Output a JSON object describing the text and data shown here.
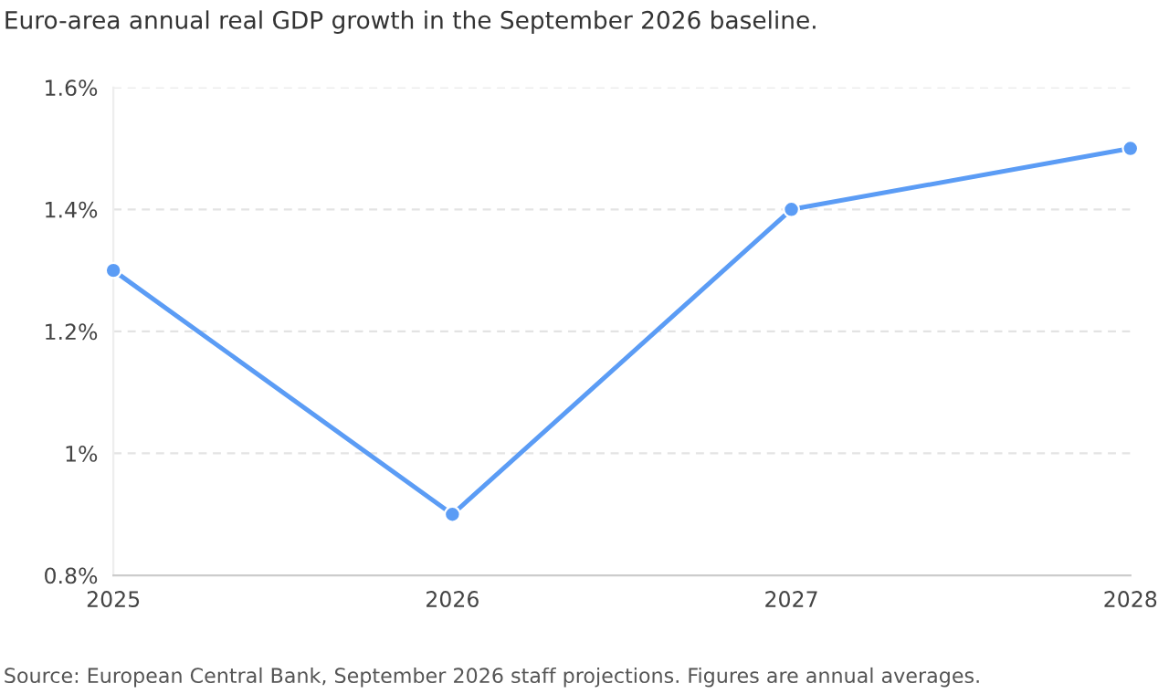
{
  "chart_data": {
    "type": "line",
    "title": "Euro-area annual real GDP growth in the September 2026 baseline.",
    "x": [
      2025,
      2026,
      2027,
      2028
    ],
    "series": [
      {
        "color": "#5b9cf5",
        "values": [
          1.3,
          0.9,
          1.4,
          1.5
        ]
      }
    ],
    "xlim": [
      2025,
      2028
    ],
    "xticks": [
      2025,
      2026,
      2027,
      2028
    ],
    "ylim": [
      0.8,
      1.6
    ],
    "yticks": [
      {
        "value": 0.8,
        "label": "0.8%"
      },
      {
        "value": 1.0,
        "label": "1%"
      },
      {
        "value": 1.2,
        "label": "1.2%"
      },
      {
        "value": 1.4,
        "label": "1.4%"
      },
      {
        "value": 1.6,
        "label": "1.6%"
      }
    ],
    "grid": "y",
    "marker": "circle",
    "line_style": "solid",
    "legend": false,
    "annotations": [
      "Source: European Central Bank, September 2026 staff projections. Figures are annual averages."
    ]
  }
}
